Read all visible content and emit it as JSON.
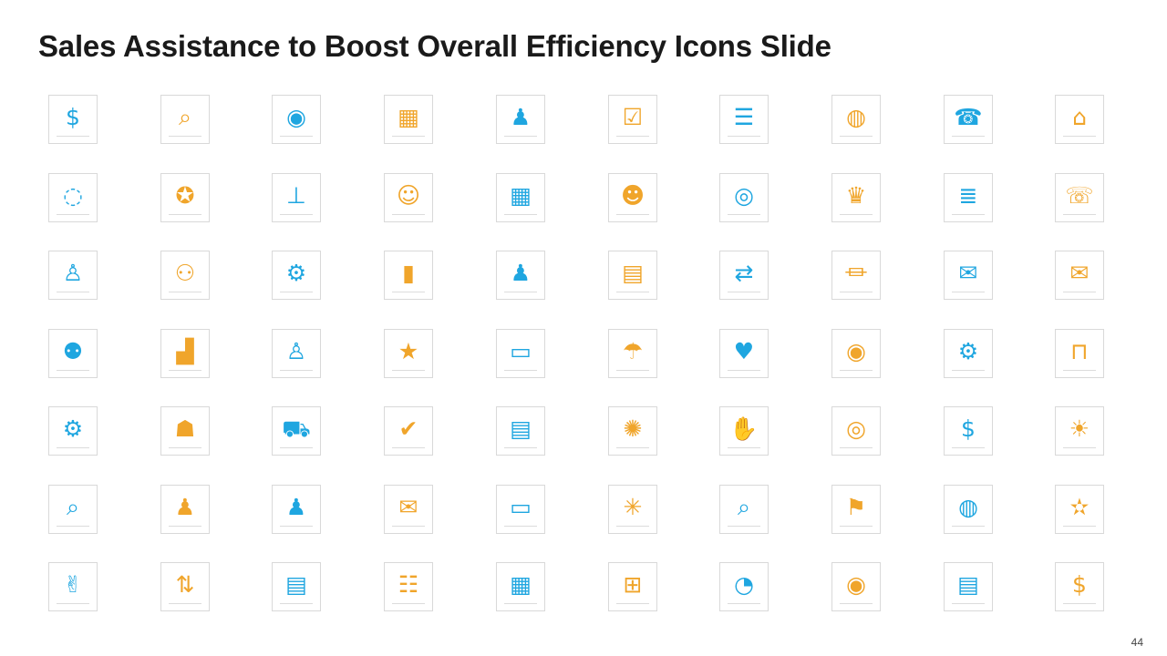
{
  "slide": {
    "title": "Sales Assistance to Boost Overall Efficiency Icons Slide",
    "page_number": "44"
  },
  "colors": {
    "blue": "#1FA6E0",
    "orange": "#F0A52B",
    "tile_border": "#d9d9d9"
  },
  "icon_color_pattern": [
    "blue",
    "orange",
    "blue",
    "orange",
    "blue",
    "orange",
    "blue",
    "orange",
    "blue",
    "orange"
  ],
  "icon_rows": [
    [
      "hand-money-icon",
      "coins-search-icon",
      "eye-hierarchy-icon",
      "presentation-team-icon",
      "businessman-dollar-icon",
      "checkbox-stack-icon",
      "document-icon",
      "globe-dollar-people-icon",
      "customer-support-call-icon",
      "home-icon"
    ],
    [
      "chat-cart-icon",
      "award-dollar-icon",
      "hierarchy-boxes-icon",
      "call-center-agent-icon",
      "calendar-icon",
      "support-agent-icon",
      "target-dollar-icon",
      "trophy-boxes-icon",
      "database-transfer-icon",
      "phone-question-icon"
    ],
    [
      "user-dollar-icon",
      "team-hierarchy-dollar-icon",
      "user-gear-icon",
      "bar-chart-pin-icon",
      "businessman-dollar-gear-icon",
      "calculator-gear-icon",
      "process-flow-icon",
      "bank-icon",
      "chat-bubble-icon",
      "email-envelope-icon"
    ],
    [
      "meeting-team-icon",
      "growth-chart-dollar-icon",
      "user-target-dollar-icon",
      "user-star-icon",
      "laptop-shopping-icon",
      "umbrella-growth-icon",
      "team-heart-icon",
      "hand-coin-icon",
      "gear-wrench-icon",
      "desk-worker-icon"
    ],
    [
      "team-meeting-gear-icon",
      "worker-box-icon",
      "delivery-truck-icon",
      "approval-documents-icon",
      "clipboard-checklist-icon",
      "team-ideas-icon",
      "handshake-dollar-icon",
      "target-arrow-icon",
      "hand-dollar-icon",
      "lightbulb-icon"
    ],
    [
      "chart-search-icon",
      "businessman-coins-icon",
      "businessman-dollar-icon",
      "envelope-at-icon",
      "monitor-gear-icon",
      "network-nodes-icon",
      "magnifier-chart-icon",
      "mountain-flag-icon",
      "globe-puzzle-hand-icon",
      "team-stars-icon"
    ],
    [
      "thumbs-up-icon",
      "thumbs-up-down-icon",
      "clipboard-search-icon",
      "checklist-gear-icon",
      "calculator-dollar-gear-icon",
      "meeting-table-icon",
      "magnifier-pie-icon",
      "eye-icon",
      "certificate-icon",
      "piggy-bank-dollar-icon"
    ]
  ]
}
